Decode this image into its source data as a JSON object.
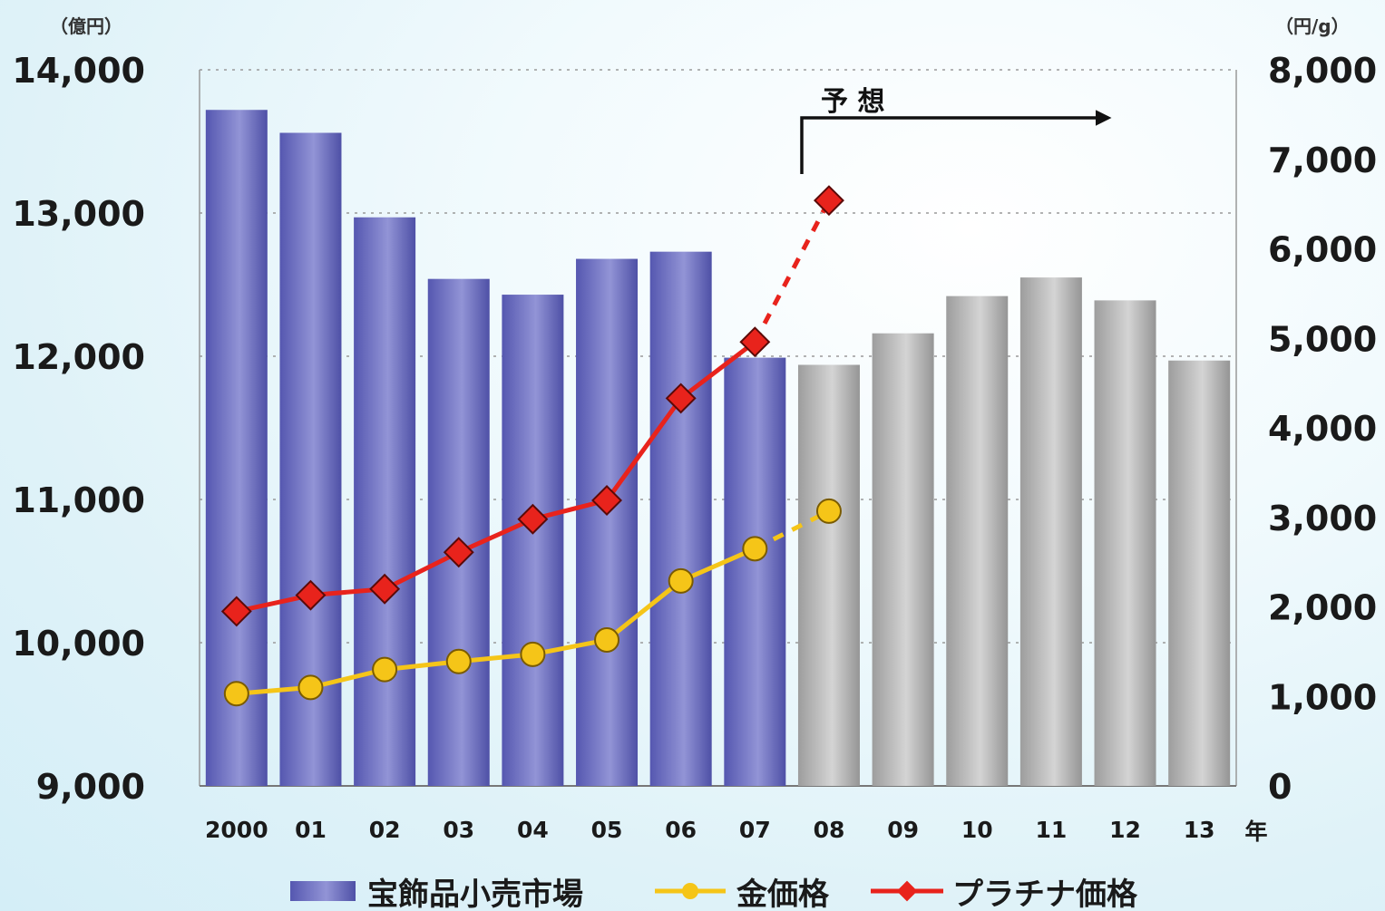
{
  "chart_data": {
    "type": "bar",
    "categories": [
      "2000",
      "01",
      "02",
      "03",
      "04",
      "05",
      "06",
      "07",
      "08",
      "09",
      "10",
      "11",
      "12",
      "13"
    ],
    "x_unit": "年",
    "forecast_label": "予 想",
    "forecast_start_category": "08",
    "y_left": {
      "unit": "（億円）",
      "ylim": [
        9000,
        14000
      ],
      "ticks": [
        "9,000",
        "10,000",
        "11,000",
        "12,000",
        "13,000",
        "14,000"
      ]
    },
    "y_right": {
      "unit": "（円/g）",
      "ylim": [
        0,
        8000
      ],
      "ticks": [
        "0",
        "1,000",
        "2,000",
        "3,000",
        "4,000",
        "5,000",
        "6,000",
        "7,000",
        "8,000"
      ]
    },
    "grid": true,
    "legend_position": "bottom",
    "series": [
      {
        "name": "宝飾品小売市場",
        "type": "bar",
        "axis": "left",
        "color": "#6a6cc0",
        "forecast_color": "#b8b8b8",
        "values": [
          13720,
          13560,
          12970,
          12540,
          12430,
          12680,
          12730,
          11990,
          11940,
          12160,
          12420,
          12550,
          12390,
          11970
        ]
      },
      {
        "name": "金価格",
        "type": "line",
        "axis": "right",
        "color": "#f5c518",
        "values": [
          1030,
          1100,
          1300,
          1390,
          1470,
          1630,
          2290,
          2650,
          3070,
          null,
          null,
          null,
          null,
          null
        ]
      },
      {
        "name": "プラチナ価格",
        "type": "line",
        "axis": "right",
        "color": "#e8231c",
        "values": [
          1950,
          2130,
          2200,
          2610,
          2980,
          3190,
          4330,
          4960,
          6540,
          null,
          null,
          null,
          null,
          null
        ]
      }
    ]
  }
}
